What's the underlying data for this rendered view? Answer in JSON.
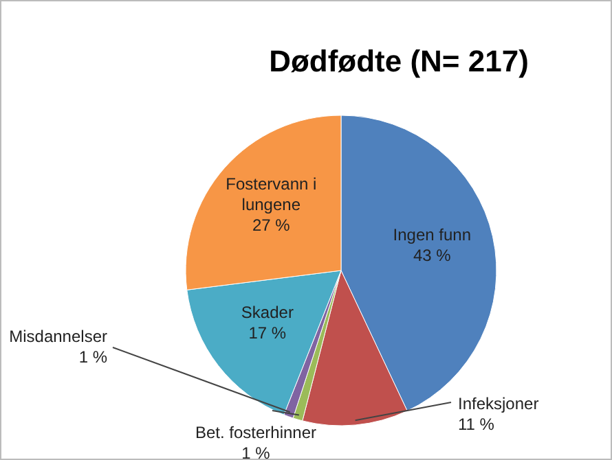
{
  "chart_data": {
    "type": "pie",
    "title": "Dødfødte (N= 217)",
    "categories": [
      "Ingen funn",
      "Infeksjoner",
      "Bet. fosterhinner",
      "Misdannelser",
      "Skader",
      "Fostervann i lungene"
    ],
    "values": [
      43,
      11,
      1,
      1,
      17,
      27
    ],
    "colors": [
      "#4f81bd",
      "#c0504d",
      "#9bbb59",
      "#8064a2",
      "#4bacc6",
      "#f79646"
    ],
    "value_labels": [
      "43 %",
      "11 %",
      "1 %",
      "1 %",
      "17 %",
      "27 %"
    ]
  }
}
